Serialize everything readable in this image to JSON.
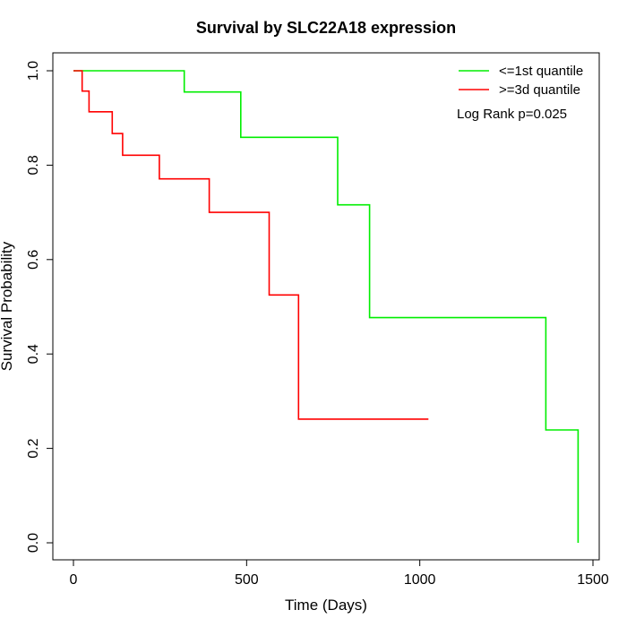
{
  "chart_data": {
    "type": "line",
    "title": "Survival by SLC22A18 expression",
    "xlabel": "Time (Days)",
    "ylabel": "Survival Probability",
    "xlim": [
      0,
      1500
    ],
    "ylim": [
      0,
      1
    ],
    "x_ticks": [
      0,
      500,
      1000,
      1500
    ],
    "y_ticks": [
      0.0,
      0.2,
      0.4,
      0.6,
      0.8,
      1.0
    ],
    "x_tick_labels": [
      "0",
      "500",
      "1000",
      "1500"
    ],
    "y_tick_labels": [
      "0.0",
      "0.2",
      "0.4",
      "0.6",
      "0.8",
      "1.0"
    ],
    "grid": false,
    "legend_position": "top-right",
    "annotation": "Log Rank p=0.025",
    "series": [
      {
        "name": "<=1st quantile",
        "color": "#00ee00",
        "step": true,
        "points": [
          [
            0,
            1.0
          ],
          [
            320,
            1.0
          ],
          [
            320,
            0.955
          ],
          [
            483,
            0.955
          ],
          [
            483,
            0.859
          ],
          [
            763,
            0.859
          ],
          [
            763,
            0.716
          ],
          [
            855,
            0.716
          ],
          [
            855,
            0.477
          ],
          [
            1364,
            0.477
          ],
          [
            1364,
            0.239
          ],
          [
            1457,
            0.239
          ],
          [
            1457,
            0.0
          ]
        ]
      },
      {
        "name": ">=3d quantile",
        "color": "#ff0000",
        "step": true,
        "points": [
          [
            0,
            1.0
          ],
          [
            25,
            1.0
          ],
          [
            25,
            0.957
          ],
          [
            45,
            0.957
          ],
          [
            45,
            0.913
          ],
          [
            112,
            0.913
          ],
          [
            112,
            0.867
          ],
          [
            142,
            0.867
          ],
          [
            142,
            0.821
          ],
          [
            248,
            0.821
          ],
          [
            248,
            0.771
          ],
          [
            392,
            0.771
          ],
          [
            392,
            0.7
          ],
          [
            565,
            0.7
          ],
          [
            565,
            0.525
          ],
          [
            650,
            0.525
          ],
          [
            650,
            0.262
          ],
          [
            1025,
            0.262
          ]
        ]
      }
    ]
  }
}
